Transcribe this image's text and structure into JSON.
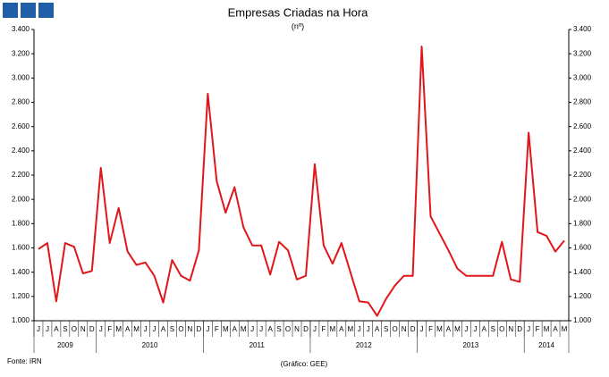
{
  "chart_data": {
    "type": "line",
    "title": "Empresas Criadas na Hora",
    "subtitle": "(nº)",
    "source": "Fonte: IRN",
    "credit": "(Gráfico: GEE)",
    "categories": [
      "J",
      "J",
      "A",
      "S",
      "O",
      "N",
      "D",
      "J",
      "F",
      "M",
      "A",
      "M",
      "J",
      "J",
      "A",
      "S",
      "O",
      "N",
      "D",
      "J",
      "F",
      "M",
      "A",
      "M",
      "J",
      "J",
      "A",
      "S",
      "O",
      "N",
      "D",
      "J",
      "F",
      "M",
      "A",
      "M",
      "J",
      "J",
      "A",
      "S",
      "O",
      "N",
      "D",
      "J",
      "F",
      "M",
      "A",
      "M",
      "J",
      "J",
      "A",
      "S",
      "O",
      "N",
      "D",
      "J",
      "F",
      "M",
      "A",
      "M"
    ],
    "years": [
      "2009",
      "2010",
      "2011",
      "2012",
      "2013",
      "2014"
    ],
    "series": [
      {
        "color": "#e0161b",
        "values": [
          1590,
          1640,
          1160,
          1640,
          1610,
          1390,
          1410,
          2260,
          1640,
          1930,
          1570,
          1460,
          1480,
          1370,
          1150,
          1500,
          1370,
          1330,
          1580,
          2870,
          2150,
          1890,
          2100,
          1770,
          1620,
          1620,
          1380,
          1650,
          1580,
          1340,
          1370,
          2290,
          1620,
          1470,
          1640,
          1400,
          1160,
          1150,
          1040,
          1180,
          1290,
          1370,
          1370,
          3260,
          1860,
          1720,
          1580,
          1430,
          1370,
          1370,
          1370,
          1370,
          1650,
          1340,
          1320,
          2550,
          1730,
          1700,
          1570,
          1660
        ]
      }
    ],
    "ylim": [
      1000,
      3400
    ],
    "yticks": [
      {
        "value": 1000,
        "label": "1.000"
      },
      {
        "value": 1200,
        "label": "1.200"
      },
      {
        "value": 1400,
        "label": "1.400"
      },
      {
        "value": 1600,
        "label": "1.600"
      },
      {
        "value": 1800,
        "label": "1.800"
      },
      {
        "value": 2000,
        "label": "2.000"
      },
      {
        "value": 2200,
        "label": "2.200"
      },
      {
        "value": 2400,
        "label": "2.400"
      },
      {
        "value": 2600,
        "label": "2.600"
      },
      {
        "value": 2800,
        "label": "2.800"
      },
      {
        "value": 3000,
        "label": "3.000"
      },
      {
        "value": 3200,
        "label": "3.200"
      },
      {
        "value": 3400,
        "label": "3.400"
      }
    ],
    "grid": false
  }
}
